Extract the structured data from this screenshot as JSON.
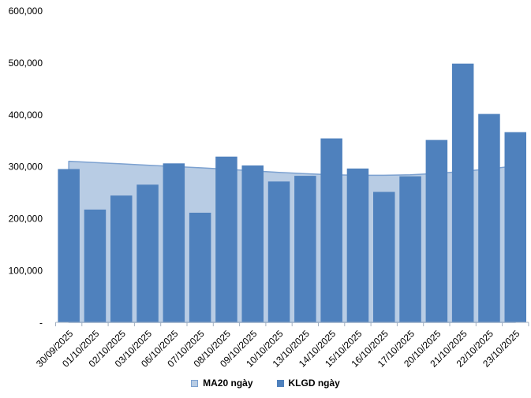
{
  "chart": {
    "background": "#ffffff",
    "axis_color": "#A3B1C2",
    "text_color": "#000000"
  },
  "chart_data": {
    "type": "combo",
    "title": "",
    "xlabel": "",
    "ylabel": "",
    "categories": [
      "30/09/2025",
      "01/10/2025",
      "02/10/2025",
      "03/10/2025",
      "06/10/2025",
      "07/10/2025",
      "08/10/2025",
      "09/10/2025",
      "10/10/2025",
      "13/10/2025",
      "14/10/2025",
      "15/10/2025",
      "16/10/2025",
      "17/10/2025",
      "20/10/2025",
      "21/10/2025",
      "22/10/2025",
      "23/10/2025"
    ],
    "series": [
      {
        "name": "MA20 ngày",
        "type": "area",
        "fill": "#B8CCE4",
        "stroke": "#7CA1D0",
        "values": [
          310000,
          307500,
          305000,
          302500,
          300000,
          297500,
          294500,
          291500,
          288500,
          286000,
          284000,
          283000,
          283000,
          284000,
          286500,
          290500,
          295500,
          301000
        ]
      },
      {
        "name": "KLGD ngày",
        "type": "bar",
        "fill": "#4F81BD",
        "values": [
          295000,
          217000,
          244000,
          265000,
          306000,
          211000,
          319000,
          302000,
          271000,
          282000,
          354000,
          296000,
          251000,
          281000,
          351000,
          498000,
          401000,
          366000
        ]
      }
    ],
    "ylim": [
      0,
      600000
    ],
    "y_ticks": [
      {
        "value": 0,
        "label": "-"
      },
      {
        "value": 100000,
        "label": "100,000"
      },
      {
        "value": 200000,
        "label": "200,000"
      },
      {
        "value": 300000,
        "label": "300,000"
      },
      {
        "value": 400000,
        "label": "400,000"
      },
      {
        "value": 500000,
        "label": "500,000"
      },
      {
        "value": 600000,
        "label": "600,000"
      }
    ],
    "grid": false,
    "legend_position": "bottom"
  }
}
